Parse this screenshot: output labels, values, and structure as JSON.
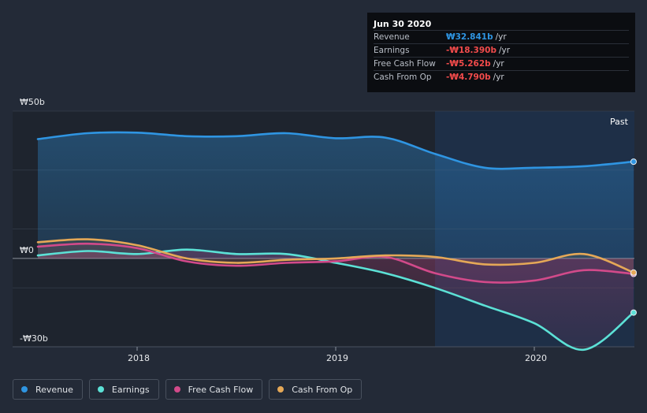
{
  "tooltip": {
    "date": "Jun 30 2020",
    "rows": [
      {
        "label": "Revenue",
        "value": "₩32.841b",
        "unit": "/yr",
        "color": "#2f95e2"
      },
      {
        "label": "Earnings",
        "value": "-₩18.390b",
        "unit": "/yr",
        "color": "#f24b4b"
      },
      {
        "label": "Free Cash Flow",
        "value": "-₩5.262b",
        "unit": "/yr",
        "color": "#f24b4b"
      },
      {
        "label": "Cash From Op",
        "value": "-₩4.790b",
        "unit": "/yr",
        "color": "#f24b4b"
      }
    ]
  },
  "past_label": "Past",
  "legend": [
    {
      "label": "Revenue",
      "color": "#2f95e2"
    },
    {
      "label": "Earnings",
      "color": "#5ce1d6"
    },
    {
      "label": "Free Cash Flow",
      "color": "#d24a8a"
    },
    {
      "label": "Cash From Op",
      "color": "#e5a857"
    }
  ],
  "chart_data": {
    "type": "line",
    "y_tick_labels": [
      "₩50b",
      "₩0",
      "-₩30b"
    ],
    "x_tick_labels": [
      "2018",
      "2019",
      "2020"
    ],
    "ylim": [
      -30,
      50
    ],
    "grid": true,
    "legend_position": "bottom",
    "series": [
      {
        "name": "Revenue",
        "color": "#2f95e2",
        "x": [
          2017.5,
          2017.75,
          2018.0,
          2018.25,
          2018.5,
          2018.75,
          2019.0,
          2019.25,
          2019.5,
          2019.75,
          2020.0,
          2020.25,
          2020.5
        ],
        "y": [
          40.5,
          42.5,
          42.7,
          41.5,
          41.5,
          42.5,
          40.8,
          41.0,
          35.5,
          30.8,
          30.8,
          31.3,
          32.841
        ]
      },
      {
        "name": "Earnings",
        "color": "#5ce1d6",
        "x": [
          2017.5,
          2017.75,
          2018.0,
          2018.25,
          2018.5,
          2018.75,
          2019.0,
          2019.25,
          2019.5,
          2019.75,
          2020.0,
          2020.25,
          2020.5
        ],
        "y": [
          1.0,
          2.5,
          1.5,
          3.0,
          1.5,
          1.5,
          -1.5,
          -5.0,
          -10.0,
          -16.0,
          -22.0,
          -31.0,
          -18.39
        ]
      },
      {
        "name": "Free Cash Flow",
        "color": "#d24a8a",
        "x": [
          2017.5,
          2017.75,
          2018.0,
          2018.25,
          2018.5,
          2018.75,
          2019.0,
          2019.25,
          2019.5,
          2019.75,
          2020.0,
          2020.25,
          2020.5
        ],
        "y": [
          4.0,
          5.0,
          3.5,
          -1.0,
          -2.5,
          -1.5,
          -1.0,
          0.5,
          -5.0,
          -8.0,
          -7.5,
          -4.0,
          -5.262
        ]
      },
      {
        "name": "Cash From Op",
        "color": "#e5a857",
        "x": [
          2017.5,
          2017.75,
          2018.0,
          2018.25,
          2018.5,
          2018.75,
          2019.0,
          2019.25,
          2019.5,
          2019.75,
          2020.0,
          2020.25,
          2020.5
        ],
        "y": [
          5.5,
          6.5,
          4.5,
          0.0,
          -1.5,
          -0.5,
          0.0,
          1.0,
          0.5,
          -2.0,
          -1.5,
          1.5,
          -4.79
        ]
      }
    ]
  }
}
